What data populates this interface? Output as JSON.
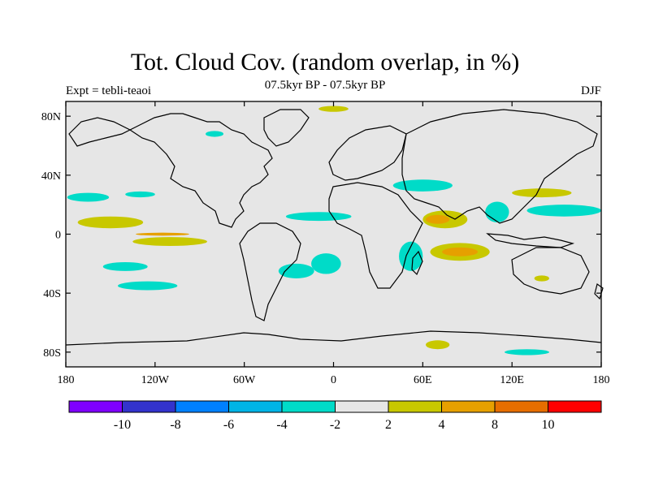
{
  "header": {
    "title": "Tot. Cloud Cov. (random overlap, in %)",
    "subtitle": "07.5kyr BP - 07.5kyr BP",
    "left_label": "Expt = tebli-teaoi",
    "right_label": "DJF"
  },
  "map": {
    "projection": "cylindrical-equidistant",
    "lon_range": [
      -180,
      180
    ],
    "lat_range": [
      -90,
      90
    ],
    "background_color": "#e6e6e6",
    "y_ticks": [
      {
        "lat": 80,
        "label": "80N"
      },
      {
        "lat": 40,
        "label": "40N"
      },
      {
        "lat": 0,
        "label": "0"
      },
      {
        "lat": -40,
        "label": "40S"
      },
      {
        "lat": -80,
        "label": "80S"
      }
    ],
    "x_ticks": [
      {
        "lon": -180,
        "label": "180"
      },
      {
        "lon": -120,
        "label": "120W"
      },
      {
        "lon": -60,
        "label": "60W"
      },
      {
        "lon": 0,
        "label": "0"
      },
      {
        "lon": 60,
        "label": "60E"
      },
      {
        "lon": 120,
        "label": "120E"
      },
      {
        "lon": 180,
        "label": "180"
      }
    ],
    "anomaly_regions": [
      {
        "name": "n-atlantic-cyan",
        "class": "-4 to -2",
        "lon": -10,
        "lat": 12,
        "rx": 22,
        "ry": 3
      },
      {
        "name": "subtropical-pacific-cyan",
        "class": "-4 to -2",
        "lon": -165,
        "lat": 25,
        "rx": 14,
        "ry": 3
      },
      {
        "name": "pacific-cyan-mid",
        "class": "-4 to -2",
        "lon": -130,
        "lat": 27,
        "rx": 10,
        "ry": 2
      },
      {
        "name": "pacific-yellow-eq",
        "class": "2 to 4",
        "lon": -150,
        "lat": 8,
        "rx": 22,
        "ry": 4
      },
      {
        "name": "pacific-yellow-eq2",
        "class": "2 to 4",
        "lon": -110,
        "lat": -5,
        "rx": 25,
        "ry": 3
      },
      {
        "name": "pacific-orange-line",
        "class": "4 to 8",
        "lon": -115,
        "lat": 0,
        "rx": 18,
        "ry": 1
      },
      {
        "name": "s-pacific-cyan-1",
        "class": "-4 to -2",
        "lon": -140,
        "lat": -22,
        "rx": 15,
        "ry": 3
      },
      {
        "name": "s-pacific-cyan-2",
        "class": "-4 to -2",
        "lon": -125,
        "lat": -35,
        "rx": 20,
        "ry": 3
      },
      {
        "name": "s-america-cyan",
        "class": "-4 to -2",
        "lon": -25,
        "lat": -25,
        "rx": 12,
        "ry": 5
      },
      {
        "name": "s-atlantic-cyan",
        "class": "-4 to -2",
        "lon": -5,
        "lat": -20,
        "rx": 10,
        "ry": 7
      },
      {
        "name": "indian-cyan-w",
        "class": "-4 to -2",
        "lon": 52,
        "lat": -15,
        "rx": 8,
        "ry": 10
      },
      {
        "name": "arabia-cyan",
        "class": "-4 to -2",
        "lon": 60,
        "lat": 33,
        "rx": 20,
        "ry": 4
      },
      {
        "name": "s-asia-yellow",
        "class": "2 to 4",
        "lon": 75,
        "lat": 10,
        "rx": 15,
        "ry": 6
      },
      {
        "name": "s-asia-orange",
        "class": "4 to 8",
        "lon": 70,
        "lat": 10,
        "rx": 8,
        "ry": 3
      },
      {
        "name": "indian-ocean-yellow",
        "class": "2 to 4",
        "lon": 85,
        "lat": -12,
        "rx": 20,
        "ry": 6
      },
      {
        "name": "indian-ocean-orange",
        "class": "4 to 8",
        "lon": 85,
        "lat": -12,
        "rx": 12,
        "ry": 3
      },
      {
        "name": "e-asia-cyan",
        "class": "-4 to -2",
        "lon": 155,
        "lat": 16,
        "rx": 25,
        "ry": 4
      },
      {
        "name": "pacific-nw-yellow",
        "class": "2 to 4",
        "lon": 140,
        "lat": 28,
        "rx": 20,
        "ry": 3
      },
      {
        "name": "china-cyan",
        "class": "-4 to -2",
        "lon": 110,
        "lat": 15,
        "rx": 8,
        "ry": 7
      },
      {
        "name": "antarctic-yellow",
        "class": "2 to 4",
        "lon": 70,
        "lat": -75,
        "rx": 8,
        "ry": 3
      },
      {
        "name": "antarctic-cyan",
        "class": "-4 to -2",
        "lon": 130,
        "lat": -80,
        "rx": 15,
        "ry": 2
      },
      {
        "name": "nz-yellow",
        "class": "2 to 4",
        "lon": 140,
        "lat": -30,
        "rx": 5,
        "ry": 2
      },
      {
        "name": "arctic-yellow",
        "class": "2 to 4",
        "lon": 0,
        "lat": 85,
        "rx": 10,
        "ry": 2
      },
      {
        "name": "n-pacific-cyan",
        "class": "-4 to -2",
        "lon": -80,
        "lat": 68,
        "rx": 6,
        "ry": 2
      }
    ]
  },
  "colorbar": {
    "colors": [
      "#7f00ff",
      "#3333cc",
      "#0080ff",
      "#00b4e6",
      "#00dbc8",
      "#e6e6e6",
      "#c8c800",
      "#e6a000",
      "#e66e00",
      "#ff0000"
    ],
    "labels": [
      {
        "after_box": 1,
        "text": "-10"
      },
      {
        "after_box": 2,
        "text": "-8"
      },
      {
        "after_box": 3,
        "text": "-6"
      },
      {
        "after_box": 4,
        "text": "-4"
      },
      {
        "after_box": 5,
        "text": "-2"
      },
      {
        "after_box": 6,
        "text": "2"
      },
      {
        "after_box": 7,
        "text": "4"
      },
      {
        "after_box": 8,
        "text": "8"
      },
      {
        "after_box": 9,
        "text": "10"
      }
    ]
  },
  "legend_classes": {
    "-4 to -2": "#00dbc8",
    "2 to 4": "#c8c800",
    "4 to 8": "#e6a000"
  }
}
